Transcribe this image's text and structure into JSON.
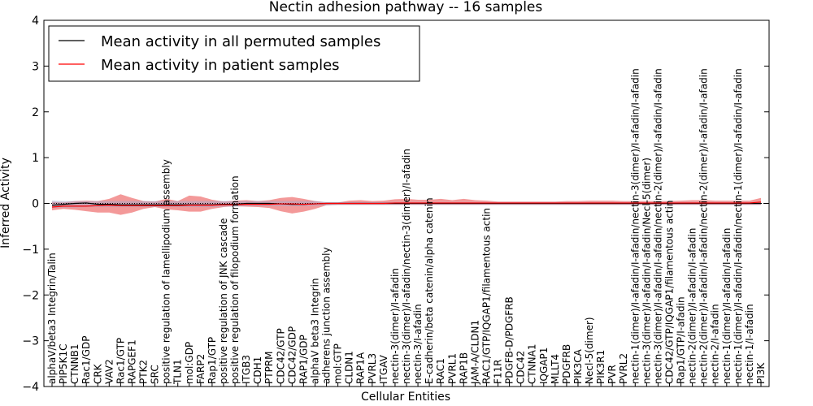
{
  "chart_data": {
    "type": "line",
    "title": "Nectin adhesion pathway -- 16 samples",
    "xlabel": "Cellular Entities",
    "ylabel": "Inferred Activity",
    "ylim": [
      -4,
      4
    ],
    "yticks": [
      "4",
      "3",
      "2",
      "1",
      "0",
      "−1",
      "−2",
      "−3",
      "−4"
    ],
    "grid": false,
    "legend_position": "top-left",
    "categories": [
      "alphaV/beta3 Integrin/Talin",
      "PIP5K1C",
      "CTNNB1",
      "Rac1/GDP",
      "CRK",
      "VAV2",
      "Rac1/GTP",
      "RAPGEF1",
      "PTK2",
      "SRC",
      "positive regulation of lamellipodium assembly",
      "TLN1",
      "mol:GDP",
      "FARP2",
      "Rap1/GTP",
      "positive regulation of JNK cascade",
      "positive regulation of filopodium formation",
      "ITGB3",
      "CDH1",
      "PTPRM",
      "CDC42/GTP",
      "CDC42/GDP",
      "RAP1/GDP",
      "alphaV beta3 Integrin",
      "adherens junction assembly",
      "mol:GTP",
      "CLDN1",
      "RAP1A",
      "PVRL3",
      "ITGAV",
      "nectin-3(dimer)/I-afadin",
      "nectin-3(dimer)/I-afadin/nectin-3(dimer)/I-afadin",
      "nectin-3/I-afadin",
      "E-cadherin/beta catenin/alpha catenin",
      "RAC1",
      "PVRL1",
      "RAP1B",
      "JAM-A/CLDN1",
      "RAC1/GTP/IQGAP1/filamentous actin",
      "F11R",
      "PDGFB-D/PDGFRB",
      "CDC42",
      "CTNNA1",
      "IQGAP1",
      "MLLT4",
      "PDGFRB",
      "PIK3CA",
      "Necl-5(dimer)",
      "PIK3R1",
      "PVR",
      "PVRL2",
      "nectin-1(dimer)/I-afadin/I-afadin/nectin-3(dimer)/I-afadin/I-afadin",
      "nectin-3(dimer)/I-afadin/I-afadin/Necl-5(dimer)",
      "nectin-3(dimer)/I-afadin/I-afadin/nectin-2(dimer)/I-afadin/I-afadin",
      "CDC42/GTP/IQGAP1/filamentous actin",
      "Rap1/GTP/I-afadin",
      "nectin-2(dimer)/I-afadin/I-afadin",
      "nectin-2(dimer)/I-afadin/I-afadin/nectin-2(dimer)/I-afadin/I-afadin",
      "nectin-2/I-afadin",
      "nectin-1(dimer)/I-afadin/I-afadin",
      "nectin-1(dimer)/I-afadin/I-afadin/nectin-1(dimer)/I-afadin/I-afadin",
      "nectin-1/I-afadin",
      "PI3K"
    ],
    "series": [
      {
        "name": "Mean activity in all permuted samples",
        "color": "#000000",
        "values": [
          -0.04,
          -0.02,
          0.0,
          0.01,
          -0.02,
          -0.02,
          -0.03,
          -0.03,
          -0.03,
          -0.03,
          -0.03,
          -0.03,
          -0.03,
          -0.03,
          -0.03,
          -0.02,
          -0.02,
          0.0,
          0.0,
          0.0,
          -0.01,
          -0.02,
          -0.02,
          -0.01,
          0.0,
          0.0,
          0.0,
          0.0,
          0.0,
          0.0,
          0.0,
          0.0,
          0.0,
          0.0,
          0.0,
          0.0,
          0.0,
          0.0,
          0.0,
          0.0,
          0.0,
          0.0,
          0.0,
          0.0,
          0.0,
          0.0,
          0.0,
          0.0,
          0.0,
          0.0,
          0.0,
          0.0,
          0.0,
          0.0,
          0.0,
          0.0,
          0.0,
          0.0,
          0.0,
          0.0,
          0.0,
          0.0,
          0.0
        ]
      },
      {
        "name": "Mean activity in patient samples",
        "color": "#ff0000",
        "values": [
          -0.08,
          -0.06,
          -0.06,
          -0.06,
          -0.05,
          -0.04,
          -0.05,
          -0.05,
          -0.05,
          -0.05,
          -0.05,
          -0.05,
          -0.04,
          -0.04,
          -0.04,
          -0.03,
          -0.03,
          -0.02,
          -0.02,
          -0.02,
          -0.01,
          -0.01,
          -0.02,
          -0.01,
          0.0,
          0.0,
          0.0,
          0.0,
          0.0,
          0.0,
          0.01,
          0.01,
          0.01,
          0.01,
          0.01,
          0.01,
          0.01,
          0.01,
          0.01,
          0.01,
          0.01,
          0.01,
          0.01,
          0.01,
          0.01,
          0.01,
          0.01,
          0.01,
          0.01,
          0.01,
          0.01,
          0.01,
          0.01,
          0.01,
          0.01,
          0.01,
          0.01,
          0.01,
          0.01,
          0.01,
          0.01,
          0.01,
          0.03
        ]
      }
    ],
    "permuted_band": {
      "upper": [
        0.06,
        0.05,
        0.05,
        0.05,
        0.05,
        0.05,
        0.05,
        0.05,
        0.05,
        0.05,
        0.05,
        0.05,
        0.05,
        0.05,
        0.05,
        0.05,
        0.05,
        0.05,
        0.05,
        0.05,
        0.05,
        0.05,
        0.05,
        0.05,
        0.03,
        0.03,
        0.03,
        0.03,
        0.03,
        0.03,
        0.03,
        0.03,
        0.03,
        0.03,
        0.03,
        0.03,
        0.03,
        0.03,
        0.03,
        0.03,
        0.03,
        0.03,
        0.03,
        0.03,
        0.03,
        0.03,
        0.03,
        0.03,
        0.03,
        0.03,
        0.03,
        0.03,
        0.03,
        0.03,
        0.03,
        0.03,
        0.03,
        0.03,
        0.03,
        0.03,
        0.03,
        0.03,
        0.03
      ],
      "lower": [
        -0.1,
        -0.09,
        -0.09,
        -0.08,
        -0.08,
        -0.08,
        -0.08,
        -0.08,
        -0.08,
        -0.08,
        -0.08,
        -0.08,
        -0.08,
        -0.08,
        -0.08,
        -0.07,
        -0.07,
        -0.06,
        -0.06,
        -0.06,
        -0.06,
        -0.06,
        -0.06,
        -0.05,
        -0.04,
        -0.03,
        -0.03,
        -0.03,
        -0.03,
        -0.03,
        -0.03,
        -0.03,
        -0.03,
        -0.03,
        -0.03,
        -0.03,
        -0.03,
        -0.03,
        -0.03,
        -0.03,
        -0.03,
        -0.03,
        -0.03,
        -0.03,
        -0.03,
        -0.03,
        -0.03,
        -0.03,
        -0.03,
        -0.03,
        -0.03,
        -0.03,
        -0.03,
        -0.03,
        -0.03,
        -0.03,
        -0.03,
        -0.03,
        -0.03,
        -0.03,
        -0.03,
        -0.03,
        -0.03
      ]
    },
    "patient_band": {
      "upper": [
        0.03,
        0.02,
        0.05,
        0.06,
        0.05,
        0.1,
        0.2,
        0.12,
        0.05,
        0.04,
        0.1,
        0.05,
        0.17,
        0.15,
        0.08,
        0.04,
        0.06,
        0.07,
        0.05,
        0.07,
        0.12,
        0.14,
        0.1,
        0.05,
        0.02,
        0.02,
        0.06,
        0.07,
        0.05,
        0.06,
        0.09,
        0.1,
        0.08,
        0.08,
        0.1,
        0.07,
        0.1,
        0.07,
        0.06,
        0.04,
        0.04,
        0.04,
        0.04,
        0.04,
        0.04,
        0.05,
        0.05,
        0.06,
        0.06,
        0.06,
        0.05,
        0.05,
        0.05,
        0.05,
        0.05,
        0.06,
        0.07,
        0.07,
        0.06,
        0.06,
        0.06,
        0.06,
        0.12
      ],
      "lower": [
        -0.15,
        -0.12,
        -0.14,
        -0.17,
        -0.2,
        -0.2,
        -0.25,
        -0.2,
        -0.12,
        -0.08,
        -0.13,
        -0.15,
        -0.18,
        -0.18,
        -0.12,
        -0.08,
        -0.06,
        -0.07,
        -0.08,
        -0.1,
        -0.17,
        -0.22,
        -0.18,
        -0.12,
        -0.04,
        -0.03,
        -0.03,
        -0.03,
        -0.03,
        -0.03,
        -0.03,
        -0.03,
        -0.03,
        -0.03,
        -0.03,
        -0.03,
        -0.03,
        -0.03,
        -0.03,
        -0.03,
        -0.03,
        -0.03,
        -0.03,
        -0.03,
        -0.03,
        -0.03,
        -0.03,
        -0.03,
        -0.03,
        -0.03,
        -0.03,
        -0.03,
        -0.03,
        -0.03,
        -0.03,
        -0.03,
        -0.03,
        -0.03,
        -0.03,
        -0.03,
        -0.03,
        -0.03,
        -0.03
      ]
    },
    "colors": {
      "patient_band": "#f08080",
      "permuted_band": "#a8a8c8",
      "zero_line": "#000000"
    }
  }
}
